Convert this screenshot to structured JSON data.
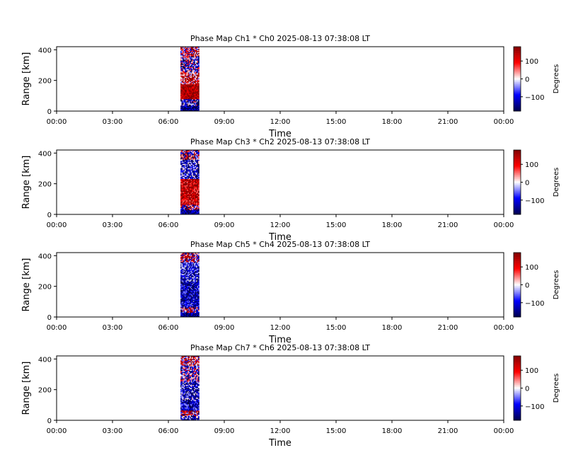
{
  "chart_data": [
    {
      "type": "heatmap",
      "title": "Phase Map Ch1 * Ch0 2025-08-13 07:38:08 LT",
      "xlabel": "Time",
      "ylabel": "Range [km]",
      "xticks": [
        "00:00",
        "03:00",
        "06:00",
        "09:00",
        "12:00",
        "15:00",
        "18:00",
        "21:00",
        "00:00"
      ],
      "yticks": [
        0,
        200,
        400
      ],
      "xlim_hours": [
        0,
        24
      ],
      "ylim": [
        0,
        420
      ],
      "data_time_range_hours": [
        6.65,
        7.65
      ],
      "data_range_km": [
        0,
        420
      ],
      "colorbar": {
        "label": "Degrees",
        "ticks": [
          100,
          0,
          -100
        ],
        "vmin": -180,
        "vmax": 180,
        "colormap": "seismic"
      },
      "pattern": "ch1"
    },
    {
      "type": "heatmap",
      "title": "Phase Map Ch3 * Ch2 2025-08-13 07:38:08 LT",
      "xlabel": "Time",
      "ylabel": "Range [km]",
      "xticks": [
        "00:00",
        "03:00",
        "06:00",
        "09:00",
        "12:00",
        "15:00",
        "18:00",
        "21:00",
        "00:00"
      ],
      "yticks": [
        0,
        200,
        400
      ],
      "xlim_hours": [
        0,
        24
      ],
      "ylim": [
        0,
        420
      ],
      "data_time_range_hours": [
        6.65,
        7.65
      ],
      "data_range_km": [
        0,
        420
      ],
      "colorbar": {
        "label": "Degrees",
        "ticks": [
          100,
          0,
          -100
        ],
        "vmin": -180,
        "vmax": 180,
        "colormap": "seismic"
      },
      "pattern": "ch3"
    },
    {
      "type": "heatmap",
      "title": "Phase Map Ch5 * Ch4 2025-08-13 07:38:08 LT",
      "xlabel": "Time",
      "ylabel": "Range [km]",
      "xticks": [
        "00:00",
        "03:00",
        "06:00",
        "09:00",
        "12:00",
        "15:00",
        "18:00",
        "21:00",
        "00:00"
      ],
      "yticks": [
        0,
        200,
        400
      ],
      "xlim_hours": [
        0,
        24
      ],
      "ylim": [
        0,
        420
      ],
      "data_time_range_hours": [
        6.65,
        7.65
      ],
      "data_range_km": [
        0,
        420
      ],
      "colorbar": {
        "label": "Degrees",
        "ticks": [
          100,
          0,
          -100
        ],
        "vmin": -180,
        "vmax": 180,
        "colormap": "seismic"
      },
      "pattern": "ch5"
    },
    {
      "type": "heatmap",
      "title": "Phase Map Ch7 * Ch6 2025-08-13 07:38:08 LT",
      "xlabel": "Time",
      "ylabel": "Range [km]",
      "xticks": [
        "00:00",
        "03:00",
        "06:00",
        "09:00",
        "12:00",
        "15:00",
        "18:00",
        "21:00",
        "00:00"
      ],
      "yticks": [
        0,
        200,
        400
      ],
      "xlim_hours": [
        0,
        24
      ],
      "ylim": [
        0,
        420
      ],
      "data_time_range_hours": [
        6.65,
        7.65
      ],
      "data_range_km": [
        0,
        420
      ],
      "colorbar": {
        "label": "Degrees",
        "ticks": [
          100,
          0,
          -100
        ],
        "vmin": -180,
        "vmax": 180,
        "colormap": "seismic"
      },
      "pattern": "ch7"
    }
  ]
}
